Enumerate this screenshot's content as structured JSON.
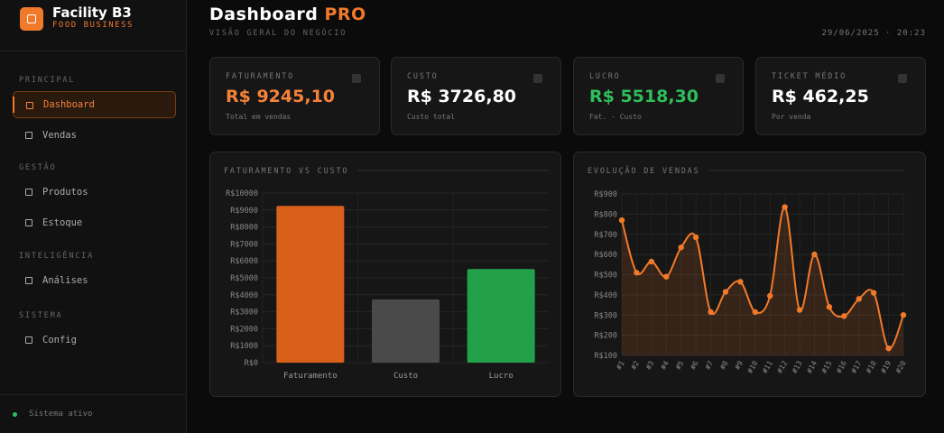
{
  "sidebar": {
    "brand": "Facility B3",
    "tagline": "FOOD BUSINESS",
    "sections": [
      {
        "title": "PRINCIPAL",
        "items": [
          {
            "label": "Dashboard",
            "active": true
          },
          {
            "label": "Vendas"
          }
        ]
      },
      {
        "title": "GESTÃO",
        "items": [
          {
            "label": "Produtos"
          },
          {
            "label": "Estoque"
          }
        ]
      },
      {
        "title": "INTELIGÊNCIA",
        "items": [
          {
            "label": "Análises"
          }
        ]
      },
      {
        "title": "SISTEMA",
        "items": [
          {
            "label": "Config"
          }
        ]
      }
    ],
    "status": "Sistema ativo"
  },
  "header": {
    "title": "Dashboard",
    "title_accent": "PRO",
    "subtitle": "VISÃO GERAL DO NEGÓCIO",
    "datetime": "29/06/2025 · 20:23"
  },
  "cards": [
    {
      "label": "FATURAMENTO",
      "value": "R$ 9245,10",
      "note": "Total em vendas",
      "color": "#f5823a"
    },
    {
      "label": "CUSTO",
      "value": "R$ 3726,80",
      "note": "Custo total",
      "color": "#ffffff"
    },
    {
      "label": "LUCRO",
      "value": "R$ 5518,30",
      "note": "Fat. - Custo",
      "color": "#2fbf5a"
    },
    {
      "label": "TICKET MÉDIO",
      "value": "R$ 462,25",
      "note": "Por venda",
      "color": "#ffffff"
    }
  ],
  "chart_data": [
    {
      "type": "bar",
      "title": "FATURAMENTO VS CUSTO",
      "categories": [
        "Faturamento",
        "Custo",
        "Lucro"
      ],
      "values": [
        9245.1,
        3726.8,
        5518.3
      ],
      "colors": [
        "#d9601a",
        "#4a4a4a",
        "#22a04a"
      ],
      "ylim": [
        0,
        10000
      ],
      "yticks": [
        {
          "value": 0,
          "label": "R$0"
        },
        {
          "value": 1000,
          "label": "R$1000"
        },
        {
          "value": 2000,
          "label": "R$2000"
        },
        {
          "value": 3000,
          "label": "R$3000"
        },
        {
          "value": 4000,
          "label": "R$4000"
        },
        {
          "value": 5000,
          "label": "R$5000"
        },
        {
          "value": 6000,
          "label": "R$6000"
        },
        {
          "value": 7000,
          "label": "R$7000"
        },
        {
          "value": 8000,
          "label": "R$8000"
        },
        {
          "value": 9000,
          "label": "R$9000"
        },
        {
          "value": 10000,
          "label": "R$10000"
        }
      ],
      "grid": true
    },
    {
      "type": "line",
      "title": "EVOLUÇÃO DE VENDAS",
      "categories": [
        "#1",
        "#2",
        "#3",
        "#4",
        "#5",
        "#6",
        "#7",
        "#8",
        "#9",
        "#10",
        "#11",
        "#12",
        "#13",
        "#14",
        "#15",
        "#16",
        "#17",
        "#18",
        "#19",
        "#20"
      ],
      "values": [
        770,
        510,
        565,
        490,
        635,
        685,
        315,
        415,
        465,
        315,
        395,
        835,
        325,
        600,
        340,
        295,
        380,
        410,
        135,
        300
      ],
      "color": "#f07a2a",
      "ylim": [
        100,
        900
      ],
      "yticks": [
        {
          "value": 100,
          "label": "R$100"
        },
        {
          "value": 200,
          "label": "R$200"
        },
        {
          "value": 300,
          "label": "R$300"
        },
        {
          "value": 400,
          "label": "R$400"
        },
        {
          "value": 500,
          "label": "R$500"
        },
        {
          "value": 600,
          "label": "R$600"
        },
        {
          "value": 700,
          "label": "R$700"
        },
        {
          "value": 800,
          "label": "R$800"
        },
        {
          "value": 900,
          "label": "R$900"
        }
      ],
      "grid": true
    }
  ]
}
